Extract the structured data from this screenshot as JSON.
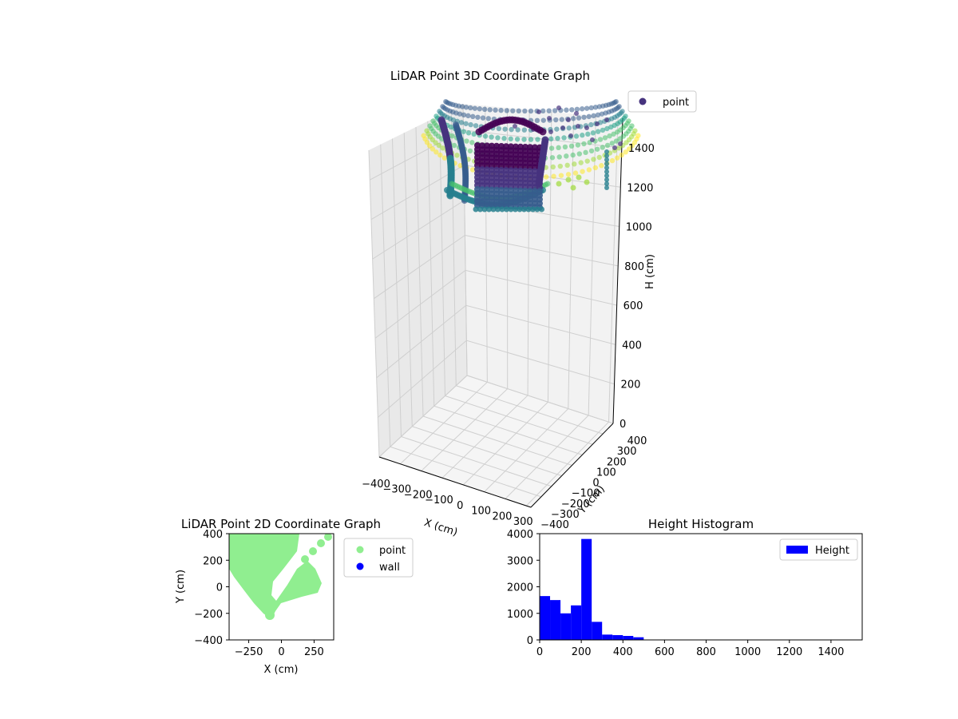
{
  "colors": {
    "point_3d": "#46337e",
    "point_2d": "#90ee90",
    "wall": "#0000ff",
    "bar": "#0000ff"
  },
  "chart_data": [
    {
      "type": "scatter3d",
      "title": "LiDAR Point 3D Coordinate Graph",
      "xlabel": "X (cm)",
      "ylabel": "Y (cm)",
      "zlabel": "H (cm)",
      "xticks": [
        "−400",
        "−300",
        "−200",
        "−100",
        "0",
        "100",
        "200",
        "300"
      ],
      "yticks": [
        "−400",
        "−300",
        "−200",
        "−100",
        "0",
        "100",
        "200",
        "300",
        "400"
      ],
      "zticks": [
        "0",
        "200",
        "400",
        "600",
        "800",
        "1000",
        "1200",
        "1400"
      ],
      "xlim": [
        -400,
        400
      ],
      "ylim": [
        -400,
        400
      ],
      "zlim": [
        1550,
        0
      ],
      "legend": [
        {
          "name": "point"
        }
      ],
      "legend_position": "upper-right outside",
      "colormap": "viridis"
    },
    {
      "type": "scatter",
      "title": "LiDAR Point 2D Coordinate Graph",
      "xlabel": "X (cm)",
      "ylabel": "Y (cm)",
      "xticks": [
        "−250",
        "0",
        "250"
      ],
      "yticks": [
        "−400",
        "−200",
        "0",
        "200",
        "400"
      ],
      "xlim": [
        -400,
        400
      ],
      "ylim": [
        -400,
        400
      ],
      "legend": [
        {
          "name": "point"
        },
        {
          "name": "wall"
        }
      ],
      "legend_position": "upper-right outside"
    },
    {
      "type": "bar",
      "title": "Height Histogram",
      "xticks": [
        "0",
        "200",
        "400",
        "600",
        "800",
        "1000",
        "1200",
        "1400"
      ],
      "yticks": [
        "0",
        "1000",
        "2000",
        "3000",
        "4000"
      ],
      "xlim": [
        0,
        1550
      ],
      "ylim": [
        0,
        4000
      ],
      "bin_width": 50,
      "bins": [
        0,
        50,
        100,
        150,
        200,
        250,
        300,
        350,
        400,
        450
      ],
      "values": [
        1650,
        1500,
        1000,
        1300,
        3800,
        680,
        200,
        180,
        150,
        100
      ],
      "legend": [
        {
          "name": "Height"
        }
      ],
      "legend_position": "upper-right"
    }
  ]
}
